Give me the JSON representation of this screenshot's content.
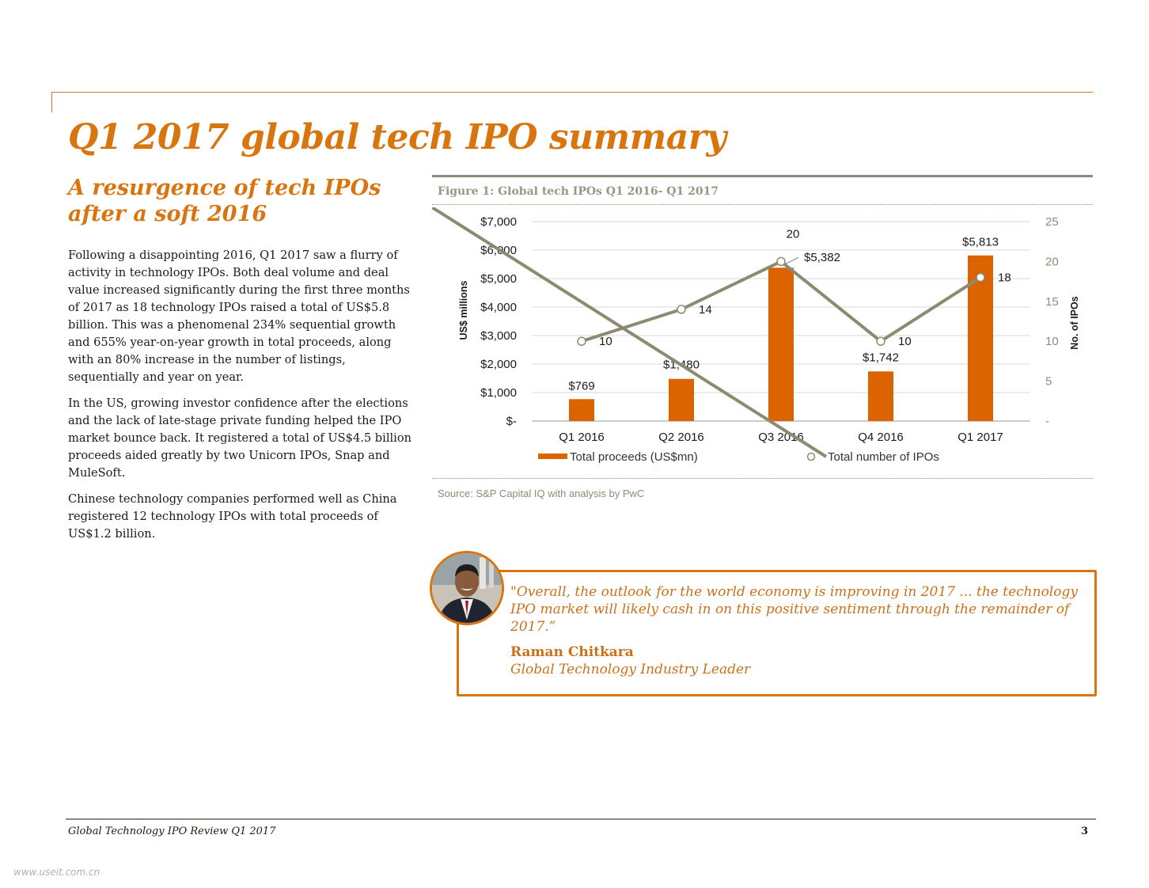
{
  "page": {
    "title": "Q1 2017 global tech IPO summary",
    "subtitle": "A resurgence of tech IPOs after a soft 2016",
    "paragraphs": [
      "Following a disappointing 2016, Q1 2017 saw a flurry of activity in technology IPOs. Both deal volume and deal value increased significantly during the first three months of 2017 as 18 technology IPOs raised a total of US$5.8 billion. This was a phenomenal 234% sequential growth and 655% year-on-year growth in total proceeds, along with an 80% increase in the number of listings, sequentially and year on year.",
      "In the US, growing investor confidence after the elections and the lack of late-stage private funding helped the IPO market bounce back. It registered a total of US$4.5 billion proceeds aided greatly by two Unicorn IPOs, Snap and MuleSoft.",
      "Chinese technology companies performed well as China registered 12 technology IPOs with total proceeds of US$1.2 billion."
    ]
  },
  "figure": {
    "title": "Figure 1: Global tech IPOs Q1 2016- Q1 2017",
    "source": "Source: S&P Capital IQ with analysis by PwC"
  },
  "chart_data": {
    "type": "bar",
    "categories": [
      "Q1 2016",
      "Q2 2016",
      "Q3 2016",
      "Q4 2016",
      "Q1 2017"
    ],
    "series": [
      {
        "name": "Total proceeds (US$mn)",
        "type": "bar",
        "axis": "left",
        "values": [
          769,
          1480,
          5382,
          1742,
          5813
        ],
        "labels": [
          "$769",
          "$1,480",
          "$5,382",
          "$1,742",
          "$5,813"
        ],
        "color": "#db6400"
      },
      {
        "name": "Total number of IPOs",
        "type": "line",
        "axis": "right",
        "values": [
          10,
          14,
          20,
          10,
          18
        ],
        "labels": [
          "10",
          "14",
          "20",
          "10",
          "18"
        ],
        "color": "#8c8a70"
      }
    ],
    "ylabel": "US$ millions",
    "y2label": "No. of IPOs",
    "ylim": [
      0,
      7000
    ],
    "y2lim": [
      0,
      25
    ],
    "yticks": [
      "$-",
      "$1,000",
      "$2,000",
      "$3,000",
      "$4,000",
      "$5,000",
      "$6,000",
      "$7,000"
    ],
    "y2ticks": [
      "-",
      "5",
      "10",
      "15",
      "20",
      "25"
    ],
    "legend_position": "bottom",
    "grid": true
  },
  "quote": {
    "text": "\"Overall, the outlook for the world economy is improving in 2017 ... the technology IPO market will likely cash in on this positive sentiment through the remainder of 2017.”",
    "name": "Raman Chitkara",
    "role": "Global Technology Industry Leader"
  },
  "footer": {
    "left": "Global Technology IPO Review Q1 2017",
    "page_number": "3"
  },
  "watermark": "www.useit.com.cn",
  "colors": {
    "accent": "#d8750e",
    "bar": "#db6400",
    "line": "#8c8a70"
  }
}
